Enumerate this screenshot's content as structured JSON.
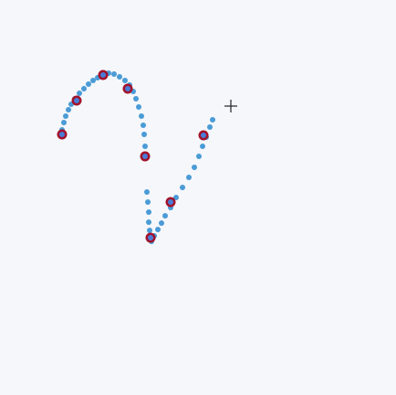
{
  "canvas": {
    "background": "#f5f7fb",
    "stroke_dot_color": "#4a9bd6",
    "keypoint_outer_color": "#a3122b",
    "keypoint_inner_color": "#4a7bd6",
    "stroke_dot_count": 46,
    "keypoint_count": 8
  },
  "cursor": {
    "icon": "crosshair-cursor-icon",
    "color": "#222222"
  }
}
